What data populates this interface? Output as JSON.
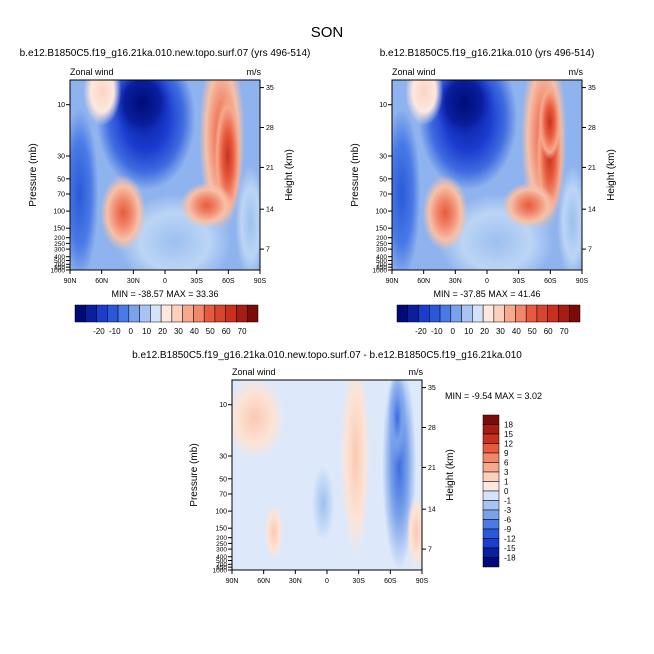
{
  "figure": {
    "title": "SON",
    "colors": {
      "cold": "#1a3ccf",
      "warm": "#d8452f",
      "background": "#ffffff"
    }
  },
  "chart_data": [
    {
      "type": "heatmap",
      "id": "panel1",
      "title": "b.e12.B1850C5.f19_g16.21ka.010.new.topo.surf.07 (yrs 496-514)",
      "left_label": "Zonal wind",
      "right_label": "m/s",
      "xlabel": "",
      "ylabel": "Pressure (mb)",
      "ylabel_right": "Height (km)",
      "x_ticks": [
        "90N",
        "60N",
        "30N",
        "0",
        "30S",
        "60S",
        "90S"
      ],
      "y_ticks": [
        "10",
        "30",
        "50",
        "70",
        "100",
        "150",
        "200",
        "250",
        "300",
        "400",
        "500",
        "700",
        "850",
        "1000"
      ],
      "y_ticks_right": [
        "35",
        "28",
        "21",
        "14",
        "7"
      ],
      "stats": "MIN = -38.57  MAX = 33.36",
      "colorbar_levels": [
        "-20",
        "-10",
        "0",
        "10",
        "20",
        "30",
        "40",
        "50",
        "60",
        "70"
      ]
    },
    {
      "type": "heatmap",
      "id": "panel2",
      "title": "b.e12.B1850C5.f19_g16.21ka.010 (yrs 496-514)",
      "left_label": "Zonal wind",
      "right_label": "m/s",
      "xlabel": "",
      "ylabel": "Pressure (mb)",
      "ylabel_right": "Height (km)",
      "x_ticks": [
        "90N",
        "60N",
        "30N",
        "0",
        "30S",
        "60S",
        "90S"
      ],
      "y_ticks": [
        "10",
        "30",
        "50",
        "70",
        "100",
        "150",
        "200",
        "250",
        "300",
        "400",
        "500",
        "700",
        "850",
        "1000"
      ],
      "y_ticks_right": [
        "35",
        "28",
        "21",
        "14",
        "7"
      ],
      "stats": "MIN = -37.85  MAX = 41.46",
      "colorbar_levels": [
        "-20",
        "-10",
        "0",
        "10",
        "20",
        "30",
        "40",
        "50",
        "60",
        "70"
      ]
    },
    {
      "type": "heatmap",
      "id": "panel3",
      "title": "b.e12.B1850C5.f19_g16.21ka.010.new.topo.surf.07 - b.e12.B1850C5.f19_g16.21ka.010",
      "left_label": "Zonal wind",
      "right_label": "m/s",
      "xlabel": "",
      "ylabel": "Pressure (mb)",
      "ylabel_right": "Height (km)",
      "x_ticks": [
        "90N",
        "60N",
        "30N",
        "0",
        "30S",
        "60S",
        "90S"
      ],
      "y_ticks": [
        "10",
        "30",
        "50",
        "70",
        "100",
        "150",
        "200",
        "250",
        "300",
        "400",
        "500",
        "700",
        "850",
        "1000"
      ],
      "y_ticks_right": [
        "35",
        "28",
        "21",
        "14",
        "7"
      ],
      "stats": "MIN =  -9.54  MAX =   3.02",
      "colorbar_levels": [
        "18",
        "15",
        "12",
        "9",
        "6",
        "3",
        "1",
        "0",
        "-1",
        "-3",
        "-6",
        "-9",
        "-12",
        "-15",
        "-18"
      ]
    }
  ]
}
